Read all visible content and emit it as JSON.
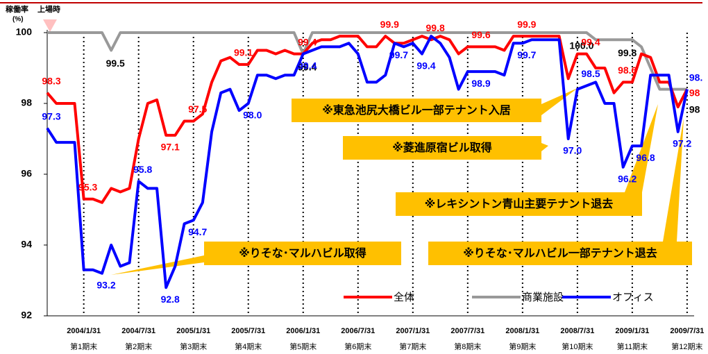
{
  "chart_data": {
    "type": "line",
    "y_axis_label": "稼働率",
    "y_axis_unit": "(%)",
    "start_marker_label": "上場時",
    "categories": [
      null,
      null,
      null,
      null,
      "2004/1/31",
      null,
      null,
      null,
      null,
      null,
      "2004/7/31",
      null,
      null,
      null,
      null,
      null,
      "2005/1/31",
      null,
      null,
      null,
      null,
      null,
      "2005/7/31",
      null,
      null,
      null,
      null,
      null,
      "2006/1/31",
      null,
      null,
      null,
      null,
      null,
      "2006/7/31",
      null,
      null,
      null,
      null,
      null,
      "2007/1/31",
      null,
      null,
      null,
      null,
      null,
      "2007/7/31",
      null,
      null,
      null,
      null,
      null,
      "2008/1/31",
      null,
      null,
      null,
      null,
      null,
      "2008/7/31",
      null,
      null,
      null,
      null,
      null,
      "2009/1/31",
      null,
      null,
      null,
      null,
      null,
      "2009/7/31"
    ],
    "period_labels": [
      null,
      null,
      null,
      null,
      "第1期末",
      null,
      null,
      null,
      null,
      null,
      "第2期末",
      null,
      null,
      null,
      null,
      null,
      "第3期末",
      null,
      null,
      null,
      null,
      null,
      "第4期末",
      null,
      null,
      null,
      null,
      null,
      "第5期末",
      null,
      null,
      null,
      null,
      null,
      "第6期末",
      null,
      null,
      null,
      null,
      null,
      "第7期末",
      null,
      null,
      null,
      null,
      null,
      "第8期末",
      null,
      null,
      null,
      null,
      null,
      "第9期末",
      null,
      null,
      null,
      null,
      null,
      "第10期末",
      null,
      null,
      null,
      null,
      null,
      "第11期末",
      null,
      null,
      null,
      null,
      null,
      "第12期末"
    ],
    "series": [
      {
        "name": "全体",
        "color": "#ff0000",
        "values": [
          98.3,
          98.0,
          98.0,
          98.0,
          95.3,
          95.3,
          95.2,
          95.6,
          95.5,
          95.6,
          97.0,
          98.0,
          98.1,
          97.1,
          97.1,
          97.5,
          97.5,
          97.7,
          98.6,
          99.2,
          99.3,
          99.1,
          99.1,
          99.5,
          99.5,
          99.4,
          99.5,
          99.4,
          99.4,
          99.7,
          99.8,
          99.8,
          99.9,
          99.9,
          99.9,
          99.6,
          99.6,
          99.9,
          99.7,
          99.7,
          99.8,
          99.9,
          99.8,
          99.9,
          99.8,
          99.4,
          99.6,
          99.6,
          99.6,
          99.6,
          99.5,
          99.9,
          99.9,
          99.9,
          99.9,
          99.9,
          99.9,
          98.7,
          99.4,
          99.4,
          99.0,
          99.0,
          98.3,
          98.6,
          98.6,
          99.4,
          99.3,
          98.6,
          98.6,
          97.9,
          98.4
        ],
        "value_labels": [
          "98.3",
          null,
          null,
          null,
          "95.3",
          null,
          null,
          null,
          null,
          null,
          null,
          null,
          null,
          "97.1",
          null,
          null,
          "97.5",
          null,
          null,
          null,
          null,
          "99.1",
          null,
          null,
          null,
          null,
          null,
          null,
          "99.4",
          null,
          null,
          null,
          null,
          null,
          null,
          null,
          null,
          "99.9",
          null,
          null,
          null,
          null,
          "99.8",
          null,
          null,
          null,
          null,
          "99.6",
          null,
          null,
          null,
          null,
          "99.9",
          null,
          null,
          null,
          null,
          null,
          null,
          "99.4",
          null,
          null,
          null,
          "98.6",
          null,
          null,
          null,
          null,
          null,
          null,
          "98"
        ]
      },
      {
        "name": "商業施設",
        "color": "#999999",
        "values": [
          100,
          100,
          100,
          100,
          100,
          100,
          100,
          99.5,
          100,
          100,
          100,
          100,
          100,
          100,
          100,
          100,
          100,
          100,
          100,
          100,
          100,
          100,
          100,
          100,
          100,
          100,
          100,
          100,
          99.4,
          100,
          100,
          100,
          100,
          100,
          100,
          100,
          100,
          100,
          100,
          100,
          100,
          100,
          100,
          100,
          100,
          100,
          100,
          100,
          100,
          100,
          100,
          100,
          100,
          100,
          100,
          100,
          100,
          100,
          100,
          100,
          99.8,
          99.8,
          99.8,
          99.8,
          99.8,
          99.6,
          99.0,
          98.4,
          98.4,
          98.4,
          98.4
        ],
        "value_labels": [
          null,
          null,
          null,
          null,
          null,
          null,
          null,
          "99.5",
          null,
          null,
          null,
          null,
          null,
          null,
          null,
          null,
          null,
          null,
          null,
          null,
          null,
          null,
          null,
          null,
          null,
          null,
          null,
          null,
          "99.4",
          null,
          null,
          null,
          null,
          null,
          null,
          null,
          null,
          null,
          null,
          null,
          null,
          null,
          null,
          null,
          null,
          null,
          null,
          null,
          null,
          null,
          null,
          null,
          null,
          null,
          null,
          null,
          null,
          null,
          "100.0",
          null,
          null,
          null,
          null,
          "99.8",
          null,
          null,
          null,
          null,
          null,
          null,
          "98"
        ]
      },
      {
        "name": "オフィス",
        "color": "#0000ff",
        "values": [
          97.3,
          96.9,
          96.9,
          96.9,
          93.3,
          93.3,
          93.2,
          94.0,
          93.4,
          93.5,
          95.8,
          95.6,
          95.6,
          92.8,
          93.4,
          94.6,
          94.7,
          95.2,
          97.2,
          98.3,
          98.4,
          97.8,
          98.0,
          98.8,
          98.8,
          98.7,
          98.8,
          98.8,
          99.4,
          99.5,
          99.6,
          99.6,
          99.6,
          99.7,
          99.4,
          98.6,
          98.6,
          98.8,
          99.7,
          99.6,
          99.7,
          99.4,
          99.9,
          99.7,
          99.3,
          98.4,
          98.9,
          98.9,
          98.9,
          98.9,
          98.8,
          99.7,
          99.7,
          99.8,
          99.8,
          99.8,
          99.8,
          97.0,
          98.4,
          98.5,
          98.6,
          98.0,
          98.0,
          96.2,
          96.8,
          96.8,
          98.8,
          98.8,
          98.8,
          97.2,
          98.4
        ],
        "value_labels": [
          "97.3",
          null,
          null,
          null,
          null,
          null,
          "93.2",
          null,
          null,
          null,
          "95.8",
          null,
          null,
          "92.8",
          null,
          null,
          "94.7",
          null,
          null,
          null,
          null,
          null,
          "98.0",
          null,
          null,
          null,
          null,
          null,
          "99.4",
          null,
          null,
          null,
          null,
          null,
          null,
          null,
          null,
          null,
          "99.7",
          null,
          null,
          "99.4",
          null,
          null,
          null,
          null,
          null,
          "98.9",
          null,
          null,
          null,
          null,
          "99.7",
          null,
          null,
          null,
          null,
          "97.0",
          null,
          "98.5",
          null,
          null,
          null,
          "96.2",
          null,
          "96.8",
          null,
          null,
          null,
          "97.2",
          "98."
        ]
      }
    ],
    "ylim": [
      92,
      100
    ],
    "yticks": [
      92,
      94,
      96,
      98,
      100
    ],
    "annotations": [
      "※東急池尻大橋ビル一部テナント入居",
      "※菱進原宿ビル取得",
      "※レキシントン青山主要テナント退去",
      "※りそな･マルハビル取得",
      "※りそな･マルハビル一部テナント退去"
    ],
    "annotation_color": "#ffc000",
    "legend": "lower right"
  }
}
